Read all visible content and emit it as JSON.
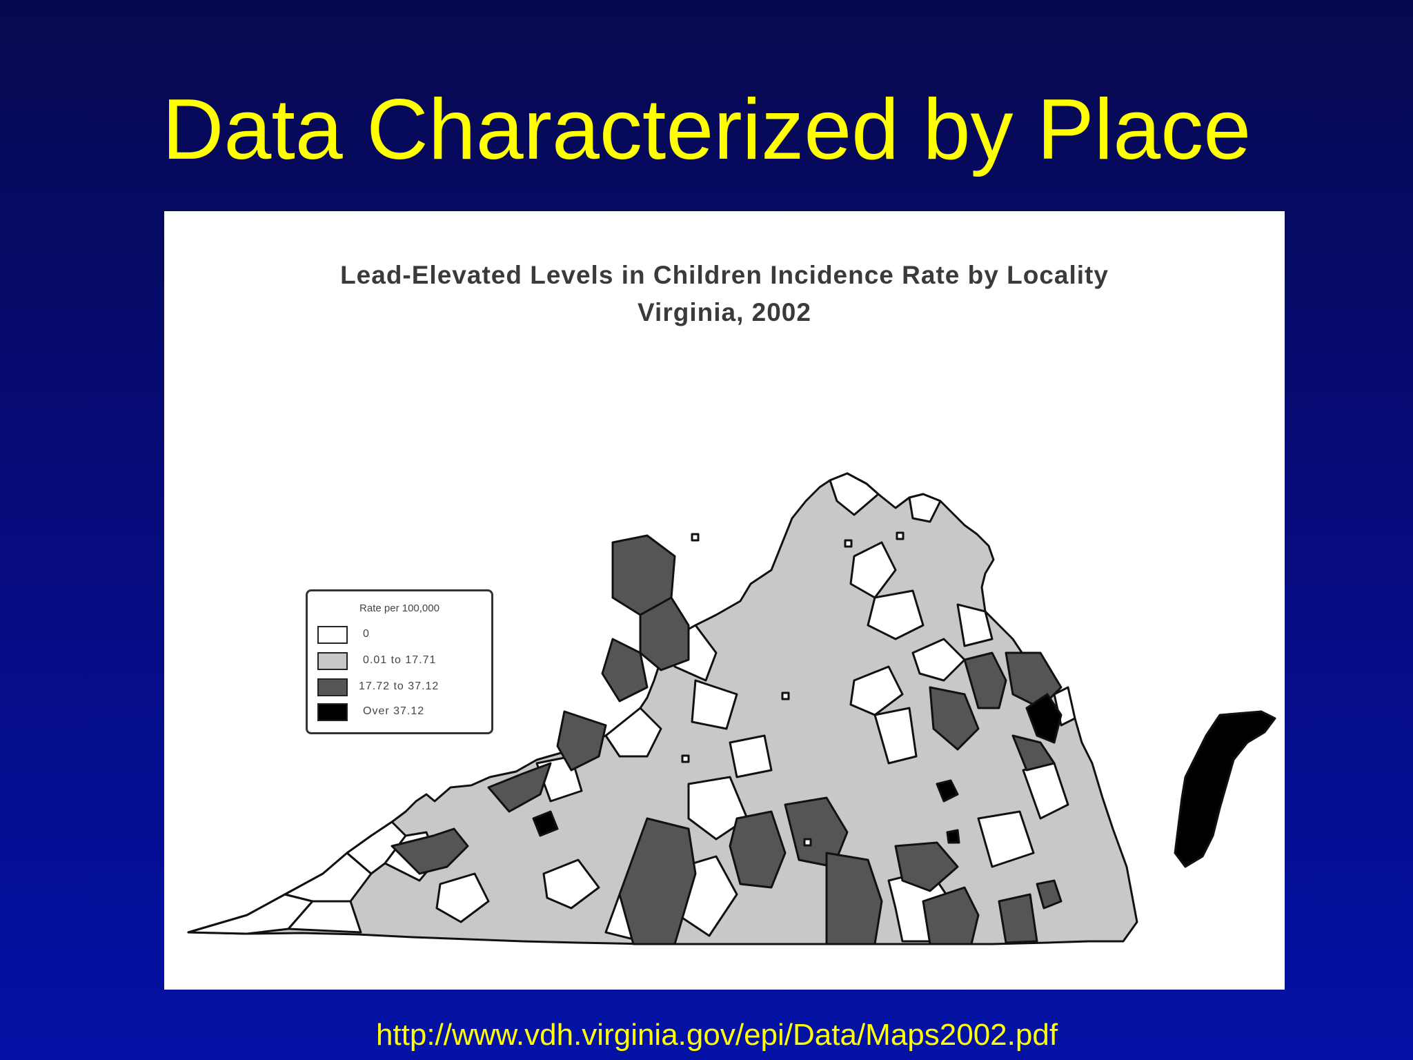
{
  "slide": {
    "title": "Data Characterized by Place",
    "source_url": "http://www.vdh.virginia.gov/epi/Data/Maps2002.pdf"
  },
  "map": {
    "title_line1": "Lead-Elevated Levels in Children Incidence Rate by Locality",
    "title_line2": "Virginia, 2002",
    "legend": {
      "title": "Rate per 100,000",
      "items": [
        {
          "label": "0",
          "color": "#ffffff"
        },
        {
          "label": "0.01 to 17.71",
          "color": "#c8c8c8"
        },
        {
          "label": "17.72 to 37.12",
          "color": "#555555"
        },
        {
          "label": "Over 37.12",
          "color": "#000000"
        }
      ]
    }
  },
  "colors": {
    "title": "#ffff00",
    "background_top": "#07094f",
    "background_bottom": "#0412a6"
  }
}
